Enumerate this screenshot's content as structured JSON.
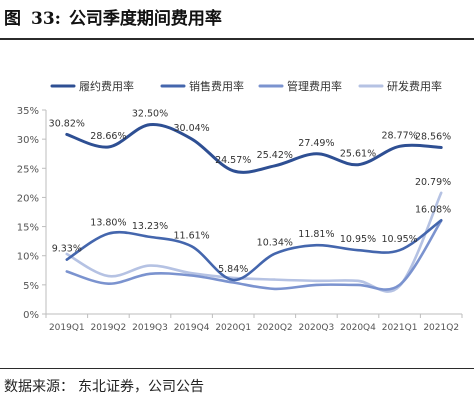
{
  "figure": {
    "label": "图",
    "number": "33:",
    "title": "公司季度期间费用率"
  },
  "source": {
    "label": "数据来源：",
    "value": "东北证券，公司公告"
  },
  "chart_data": {
    "type": "line",
    "categories": [
      "2019Q1",
      "2019Q2",
      "2019Q3",
      "2019Q4",
      "2020Q1",
      "2020Q2",
      "2020Q3",
      "2020Q4",
      "2021Q1",
      "2021Q2"
    ],
    "ylim": [
      0,
      35
    ],
    "yticks": [
      "0%",
      "5%",
      "10%",
      "15%",
      "20%",
      "25%",
      "30%",
      "35%"
    ],
    "grid": false,
    "smooth": true,
    "legend_position": "top",
    "series": [
      {
        "name": "履约费用率",
        "color": "#2e4f93",
        "width": 3,
        "values": [
          30.82,
          28.66,
          32.5,
          30.04,
          24.57,
          25.42,
          27.49,
          25.61,
          28.77,
          28.56
        ],
        "labels": [
          "30.82%",
          "28.66%",
          "32.50%",
          "30.04%",
          "24.57%",
          "25.42%",
          "27.49%",
          "25.61%",
          "28.77%",
          "28.56%"
        ]
      },
      {
        "name": "销售费用率",
        "color": "#4466ad",
        "width": 2.6,
        "values": [
          9.33,
          13.8,
          13.23,
          11.61,
          5.84,
          10.34,
          11.81,
          10.95,
          10.95,
          16.08
        ],
        "labels": [
          "9.33%",
          "13.80%",
          "13.23%",
          "11.61%",
          "5.84%",
          "10.34%",
          "11.81%",
          "10.95%",
          "10.95%",
          "16.08%"
        ]
      },
      {
        "name": "管理费用率",
        "color": "#7b93cf",
        "width": 2.6,
        "values": [
          7.3,
          5.2,
          6.9,
          6.6,
          5.4,
          4.3,
          5.0,
          5.0,
          5.0,
          16.0
        ],
        "labels": []
      },
      {
        "name": "研发费用率",
        "color": "#b5c2e3",
        "width": 2.6,
        "values": [
          10.3,
          6.5,
          8.3,
          7.0,
          6.2,
          5.9,
          5.7,
          5.7,
          4.8,
          20.79
        ],
        "labels": [
          "",
          "",
          "",
          "",
          "",
          "",
          "",
          "",
          "",
          "20.79%"
        ]
      }
    ]
  },
  "colors": {
    "axis": "#bdbdbd",
    "tick_text": "#555555",
    "label_text": "#333333"
  }
}
